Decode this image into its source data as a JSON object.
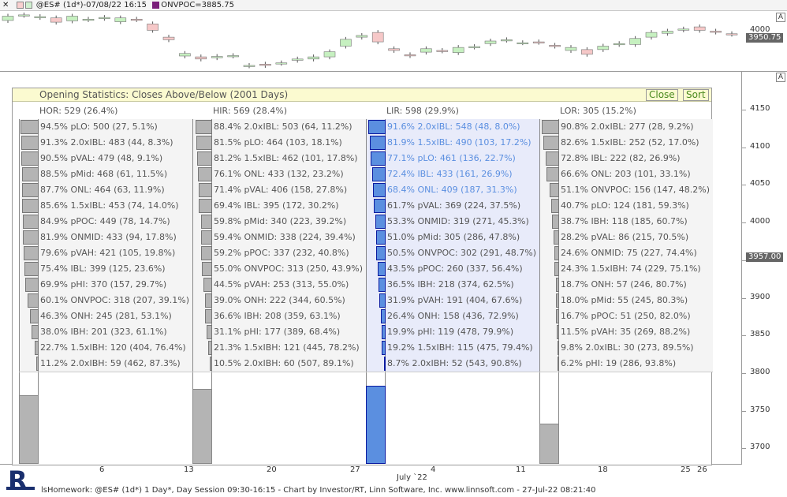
{
  "header": {
    "symbol_info": "@ES# (1d*)-07/08/22 16:15",
    "indicator": "ONVPOC=3885.75",
    "indicator_color": "#7a1f7a"
  },
  "top_chart": {
    "price_labels": [
      {
        "value": "4000",
        "y": 4000
      }
    ],
    "current_price": "3950.75",
    "scale_button": "A",
    "candles": [
      {
        "o": 4018,
        "c": 4028
      },
      {
        "o": 4030,
        "c": 4031
      },
      {
        "o": 4025,
        "c": 4027
      },
      {
        "o": 4024,
        "c": 4014
      },
      {
        "o": 4017,
        "c": 4028
      },
      {
        "o": 4020,
        "c": 4021
      },
      {
        "o": 4023,
        "c": 4025
      },
      {
        "o": 4015,
        "c": 4024
      },
      {
        "o": 4021,
        "c": 4020
      },
      {
        "o": 4010,
        "c": 3995
      },
      {
        "o": 3979,
        "c": 3973
      },
      {
        "o": 3935,
        "c": 3941
      },
      {
        "o": 3933,
        "c": 3928
      },
      {
        "o": 3931,
        "c": 3934
      },
      {
        "o": 3935,
        "c": 3936
      },
      {
        "o": 3912,
        "c": 3913
      },
      {
        "o": 3916,
        "c": 3913
      },
      {
        "o": 3918,
        "c": 3919
      },
      {
        "o": 3925,
        "c": 3928
      },
      {
        "o": 3928,
        "c": 3933
      },
      {
        "o": 3933,
        "c": 3945
      },
      {
        "o": 3958,
        "c": 3974
      },
      {
        "o": 3979,
        "c": 3983
      },
      {
        "o": 3990,
        "c": 3968
      },
      {
        "o": 3952,
        "c": 3948
      },
      {
        "o": 3938,
        "c": 3936
      },
      {
        "o": 3944,
        "c": 3952
      },
      {
        "o": 3948,
        "c": 3947
      },
      {
        "o": 3943,
        "c": 3955
      },
      {
        "o": 3956,
        "c": 3957
      },
      {
        "o": 3964,
        "c": 3970
      },
      {
        "o": 3972,
        "c": 3973
      },
      {
        "o": 3966,
        "c": 3966
      },
      {
        "o": 3968,
        "c": 3967
      },
      {
        "o": 3960,
        "c": 3958
      },
      {
        "o": 3948,
        "c": 3955
      },
      {
        "o": 3950,
        "c": 3939
      },
      {
        "o": 3950,
        "c": 3958
      },
      {
        "o": 3962,
        "c": 3964
      },
      {
        "o": 3962,
        "c": 3976
      },
      {
        "o": 3979,
        "c": 3990
      },
      {
        "o": 3988,
        "c": 3993
      },
      {
        "o": 3996,
        "c": 3998
      },
      {
        "o": 4003,
        "c": 3995
      },
      {
        "o": 3993,
        "c": 3991
      },
      {
        "o": 3987,
        "c": 3986
      }
    ]
  },
  "bottom_chart": {
    "scale_button": "A",
    "price_ticks": [
      "4150",
      "4100",
      "4050",
      "4000",
      "3950",
      "3900",
      "3850",
      "3800",
      "3750",
      "3700"
    ],
    "current_price": "3957.00",
    "date_ticks": [
      "6",
      "13",
      "20",
      "27",
      "4",
      "11",
      "18",
      "25",
      "26"
    ],
    "month_label": "July `22"
  },
  "panel": {
    "title": "Opening Statistics: Closes Above/Below (2001 Days)",
    "close_label": "Close",
    "sort_label": "Sort",
    "highlight_color": "#5b8fe0",
    "columns": [
      {
        "header": "HOR: 529 (26.4%)",
        "bottom_fill": 0.74,
        "rows": [
          "94.5%  pLO: 500 (27, 5.1%)",
          "91.3%  2.0xIBL: 483 (44, 8.3%)",
          "90.5%  pVAL: 479 (48, 9.1%)",
          "88.5%  pMid: 468 (61, 11.5%)",
          "87.7%  ONL: 464 (63, 11.9%)",
          "85.6%  1.5xIBL: 453 (74, 14.0%)",
          "84.9%  pPOC: 449 (78, 14.7%)",
          "81.9%  ONMID: 433 (94, 17.8%)",
          "79.6%  pVAH: 421 (105, 19.8%)",
          "75.4%  IBL: 399 (125, 23.6%)",
          "69.9%  pHI: 370 (157, 29.7%)",
          "60.1%  ONVPOC: 318 (207, 39.1%)",
          "46.3%  ONH: 245 (281, 53.1%)",
          "38.0%  IBH: 201 (323, 61.1%)",
          "22.7%  1.5xIBH: 120 (404, 76.4%)",
          "11.2%  2.0xIBH: 59 (462, 87.3%)"
        ],
        "bars": [
          94.5,
          91.3,
          90.5,
          88.5,
          87.7,
          85.6,
          84.9,
          81.9,
          79.6,
          75.4,
          69.9,
          60.1,
          46.3,
          38.0,
          22.7,
          11.2
        ]
      },
      {
        "header": "HIR: 569 (28.4%)",
        "bottom_fill": 0.81,
        "rows": [
          "88.4%  2.0xIBL: 503 (64, 11.2%)",
          "81.5%  pLO: 464 (103, 18.1%)",
          "81.2%  1.5xIBL: 462 (101, 17.8%)",
          "76.1%  ONL: 433 (132, 23.2%)",
          "71.4%  pVAL: 406 (158, 27.8%)",
          "69.4%  IBL: 395 (172, 30.2%)",
          "59.8%  pMid: 340 (223, 39.2%)",
          "59.4%  ONMID: 338 (224, 39.4%)",
          "59.2%  pPOC: 337 (232, 40.8%)",
          "55.0%  ONVPOC: 313 (250, 43.9%)",
          "44.5%  pVAH: 253 (313, 55.0%)",
          "39.0%  ONH: 222 (344, 60.5%)",
          "36.6%  IBH: 208 (359, 63.1%)",
          "31.1%  pHI: 177 (389, 68.4%)",
          "21.3%  1.5xIBH: 121 (445, 78.2%)",
          "10.5%  2.0xIBH: 60 (507, 89.1%)"
        ],
        "bars": [
          88.4,
          81.5,
          81.2,
          76.1,
          71.4,
          69.4,
          59.8,
          59.4,
          59.2,
          55.0,
          44.5,
          39.0,
          36.6,
          31.1,
          21.3,
          10.5
        ]
      },
      {
        "header": "LIR: 598 (29.9%)",
        "bottom_fill": 0.85,
        "highlight_rows": 5,
        "rows": [
          "91.6%  2.0xIBL: 548 (48, 8.0%)",
          "81.9%  1.5xIBL: 490 (103, 17.2%)",
          "77.1%  pLO: 461 (136, 22.7%)",
          "72.4%  IBL: 433 (161, 26.9%)",
          "68.4%  ONL: 409 (187, 31.3%)",
          "61.7%  pVAL: 369 (224, 37.5%)",
          "53.3%  ONMID: 319 (271, 45.3%)",
          "51.0%  pMid: 305 (286, 47.8%)",
          "50.5%  ONVPOC: 302 (291, 48.7%)",
          "43.5%  pPOC: 260 (337, 56.4%)",
          "36.5%  IBH: 218 (374, 62.5%)",
          "31.9%  pVAH: 191 (404, 67.6%)",
          "26.4%  ONH: 158 (436, 72.9%)",
          "19.9%  pHI: 119 (478, 79.9%)",
          "19.2%  1.5xIBH: 115 (475, 79.4%)",
          "8.7%  2.0xIBH: 52 (543, 90.8%)"
        ],
        "bars": [
          91.6,
          81.9,
          77.1,
          72.4,
          68.4,
          61.7,
          53.3,
          51.0,
          50.5,
          43.5,
          36.5,
          31.9,
          26.4,
          19.9,
          19.2,
          8.7
        ]
      },
      {
        "header": "LOR: 305 (15.2%)",
        "bottom_fill": 0.44,
        "rows": [
          "90.8%  2.0xIBL: 277 (28, 9.2%)",
          "82.6%  1.5xIBL: 252 (52, 17.0%)",
          "72.8%  IBL: 222 (82, 26.9%)",
          "66.6%  ONL: 203 (101, 33.1%)",
          "51.1%  ONVPOC: 156 (147, 48.2%)",
          "40.7%  pLO: 124 (181, 59.3%)",
          "38.7%  IBH: 118 (185, 60.7%)",
          "28.2%  pVAL: 86 (215, 70.5%)",
          "24.6%  ONMID: 75 (227, 74.4%)",
          "24.3%  1.5xIBH: 74 (229, 75.1%)",
          "18.7%  ONH: 57 (246, 80.7%)",
          "18.0%  pMid: 55 (245, 80.3%)",
          "16.7%  pPOC: 51 (250, 82.0%)",
          "11.5%  pVAH: 35 (269, 88.2%)",
          "9.8%  2.0xIBL: 30 (273, 89.5%)",
          "6.2%  pHI: 19 (286, 93.8%)"
        ],
        "bars": [
          90.8,
          82.6,
          72.8,
          66.6,
          51.1,
          40.7,
          38.7,
          28.2,
          24.6,
          24.3,
          18.7,
          18.0,
          16.7,
          11.5,
          9.8,
          6.2
        ]
      }
    ]
  },
  "footer": {
    "text": "lsHomework: @ES# (1d*) 1 Day*, Day Session 09:30-16:15 - Chart by Investor/RT, Linn Software, Inc. www.linnsoft.com - 27-Jul-22 08:21:40"
  }
}
